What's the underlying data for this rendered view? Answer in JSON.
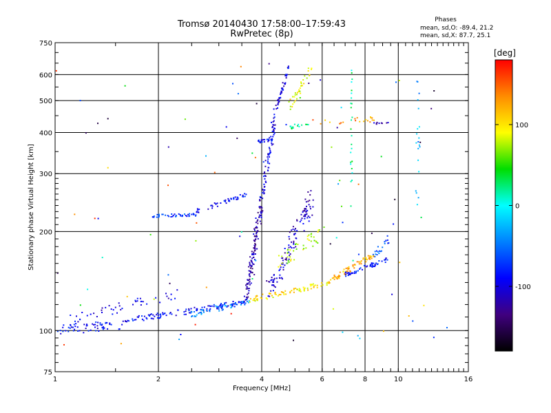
{
  "chart_data": {
    "type": "scatter",
    "title": "Tromsø 20140430 17:58:00–17:59:43",
    "subtitle": "RwPretec (8p)",
    "xlabel": "Frequency [MHz]",
    "ylabel": "Stationary phase Virtual Height [km]",
    "x_scale": "log",
    "y_scale": "log",
    "xlim": [
      1,
      16
    ],
    "ylim": [
      75,
      750
    ],
    "x_ticks": [
      1,
      2,
      4,
      6,
      8,
      10,
      16
    ],
    "x_tick_labels": [
      "1",
      "2",
      "4",
      "6",
      "8",
      "10",
      "16"
    ],
    "y_ticks": [
      75,
      100,
      200,
      300,
      400,
      500,
      600,
      750
    ],
    "y_tick_labels": [
      "75",
      "100",
      "200",
      "300",
      "400",
      "500",
      "600",
      "750"
    ],
    "grid": true,
    "phase_box": {
      "heading": "Phases",
      "line_o": "mean, sd,O: -89.4, 21.2",
      "line_x": "mean, sd,X:  87.7, 25.1"
    },
    "colorbar": {
      "label": "[deg]",
      "range": [
        -180,
        180
      ],
      "ticks": [
        100,
        0,
        -100
      ],
      "tick_labels": [
        "100",
        "0",
        "-100"
      ],
      "colors": [
        "#ff0000",
        "#ff8c00",
        "#ffff00",
        "#00dd00",
        "#00ffff",
        "#0080ff",
        "#0000ff",
        "#40007f",
        "#000000"
      ]
    },
    "series": [
      {
        "traces": [
          {
            "x0": 1.0,
            "x1": 1.6,
            "h0": 100,
            "h1": 105,
            "phase": -90,
            "n": 60,
            "spread": 0.035
          },
          {
            "x0": 1.6,
            "x1": 3.6,
            "h0": 107,
            "h1": 122,
            "phase": -90,
            "n": 120,
            "spread": 0.02
          },
          {
            "x0": 2.5,
            "x1": 3.7,
            "h0": 112,
            "h1": 123,
            "phase": -40,
            "n": 50,
            "spread": 0.02
          },
          {
            "x0": 1.1,
            "x1": 2.3,
            "h0": 108,
            "h1": 130,
            "phase": -100,
            "n": 45,
            "spread": 0.035
          },
          {
            "x0": 1.9,
            "x1": 2.6,
            "h0": 223,
            "h1": 225,
            "phase": -70,
            "n": 45,
            "spread": 0.01
          },
          {
            "x0": 2.5,
            "x1": 3.6,
            "h0": 228,
            "h1": 258,
            "phase": -90,
            "n": 45,
            "spread": 0.015
          },
          {
            "x0": 3.6,
            "x1": 4.0,
            "h0": 125,
            "h1": 250,
            "phase": -120,
            "n": 130,
            "spread": 0.05
          },
          {
            "x0": 4.0,
            "x1": 4.4,
            "h0": 250,
            "h1": 470,
            "phase": -100,
            "n": 70,
            "spread": 0.04
          },
          {
            "x0": 3.9,
            "x1": 4.3,
            "h0": 375,
            "h1": 380,
            "phase": -90,
            "n": 25,
            "spread": 0.01
          },
          {
            "x0": 4.2,
            "x1": 5.6,
            "h0": 130,
            "h1": 250,
            "phase": -110,
            "n": 120,
            "spread": 0.08
          },
          {
            "x0": 4.4,
            "x1": 4.8,
            "h0": 470,
            "h1": 630,
            "phase": -100,
            "n": 40,
            "spread": 0.02
          },
          {
            "x0": 4.8,
            "x1": 5.6,
            "h0": 480,
            "h1": 630,
            "phase": 90,
            "n": 35,
            "spread": 0.03
          },
          {
            "x0": 4.8,
            "x1": 5.5,
            "h0": 415,
            "h1": 430,
            "phase": 20,
            "n": 15,
            "spread": 0.02
          },
          {
            "x0": 3.7,
            "x1": 6.4,
            "h0": 124,
            "h1": 140,
            "phase": 100,
            "n": 80,
            "spread": 0.02
          },
          {
            "x0": 6.4,
            "x1": 8.5,
            "h0": 143,
            "h1": 170,
            "phase": 120,
            "n": 70,
            "spread": 0.02
          },
          {
            "x0": 7.0,
            "x1": 9.4,
            "h0": 148,
            "h1": 165,
            "phase": -85,
            "n": 55,
            "spread": 0.015
          },
          {
            "x0": 4.5,
            "x1": 6.0,
            "h0": 160,
            "h1": 200,
            "phase": 80,
            "n": 45,
            "spread": 0.05
          },
          {
            "x0": 5.9,
            "x1": 8.5,
            "h0": 430,
            "h1": 440,
            "phase": 130,
            "n": 20,
            "spread": 0.02
          },
          {
            "x0": 8.5,
            "x1": 9.4,
            "h0": 425,
            "h1": 430,
            "phase": -110,
            "n": 10,
            "spread": 0.01
          },
          {
            "x0": 8.5,
            "x1": 9.4,
            "h0": 170,
            "h1": 190,
            "phase": -60,
            "n": 20,
            "spread": 0.03
          },
          {
            "x0": 7.3,
            "x1": 7.3,
            "h0": 230,
            "h1": 650,
            "phase": 20,
            "n": 25,
            "spread": 0.02
          },
          {
            "x0": 11.4,
            "x1": 11.4,
            "h0": 230,
            "h1": 680,
            "phase": -30,
            "n": 20,
            "spread": 0.05
          },
          {
            "x0": 1.0,
            "x1": 14.0,
            "h0": 90,
            "h1": 650,
            "phase": 0,
            "n": 90,
            "spread": 0.0
          }
        ]
      }
    ]
  }
}
